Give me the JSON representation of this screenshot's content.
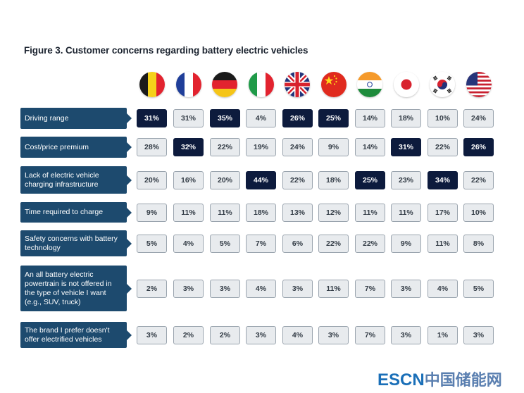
{
  "chart_data": {
    "type": "table",
    "title": "Figure 3. Customer concerns regarding battery electric vehicles",
    "columns": [
      "belgium-flag",
      "france-flag",
      "germany-flag",
      "italy-flag",
      "uk-flag",
      "china-flag",
      "india-flag",
      "japan-flag",
      "south-korea-flag",
      "usa-flag"
    ],
    "rows": [
      {
        "label": "Driving range",
        "values": [
          "31%",
          "31%",
          "35%",
          "4%",
          "26%",
          "25%",
          "14%",
          "18%",
          "10%",
          "24%"
        ],
        "highlight": [
          true,
          false,
          true,
          false,
          true,
          true,
          false,
          false,
          false,
          false
        ]
      },
      {
        "label": "Cost/price premium",
        "values": [
          "28%",
          "32%",
          "22%",
          "19%",
          "24%",
          "9%",
          "14%",
          "31%",
          "22%",
          "26%"
        ],
        "highlight": [
          false,
          true,
          false,
          false,
          false,
          false,
          false,
          true,
          false,
          true
        ]
      },
      {
        "label": "Lack of electric vehicle charging infrastructure",
        "values": [
          "20%",
          "16%",
          "20%",
          "44%",
          "22%",
          "18%",
          "25%",
          "23%",
          "34%",
          "22%"
        ],
        "highlight": [
          false,
          false,
          false,
          true,
          false,
          false,
          true,
          false,
          true,
          false
        ]
      },
      {
        "label": "Time required to charge",
        "values": [
          "9%",
          "11%",
          "11%",
          "18%",
          "13%",
          "12%",
          "11%",
          "11%",
          "17%",
          "10%"
        ],
        "highlight": [
          false,
          false,
          false,
          false,
          false,
          false,
          false,
          false,
          false,
          false
        ]
      },
      {
        "label": "Safety concerns with battery technology",
        "values": [
          "5%",
          "4%",
          "5%",
          "7%",
          "6%",
          "22%",
          "22%",
          "9%",
          "11%",
          "8%"
        ],
        "highlight": [
          false,
          false,
          false,
          false,
          false,
          false,
          false,
          false,
          false,
          false
        ]
      },
      {
        "label": "An all battery electric powertrain is not offered in the type of vehicle I want (e.g., SUV, truck)",
        "values": [
          "2%",
          "3%",
          "3%",
          "4%",
          "3%",
          "11%",
          "7%",
          "3%",
          "4%",
          "5%"
        ],
        "highlight": [
          false,
          false,
          false,
          false,
          false,
          false,
          false,
          false,
          false,
          false
        ]
      },
      {
        "label": "The brand I prefer doesn't offer electrified vehicles",
        "values": [
          "3%",
          "2%",
          "2%",
          "3%",
          "4%",
          "3%",
          "7%",
          "3%",
          "1%",
          "3%"
        ],
        "highlight": [
          false,
          false,
          false,
          false,
          false,
          false,
          false,
          false,
          false,
          false
        ]
      }
    ]
  },
  "colors": {
    "label_bg": "#1d4a6e",
    "highlight_bg": "#0d1b3d",
    "cell_bg": "#e8ebee",
    "cell_border": "#9aa4ae"
  },
  "watermark": {
    "latin": "ESCN",
    "cjk": "中国储能网"
  }
}
